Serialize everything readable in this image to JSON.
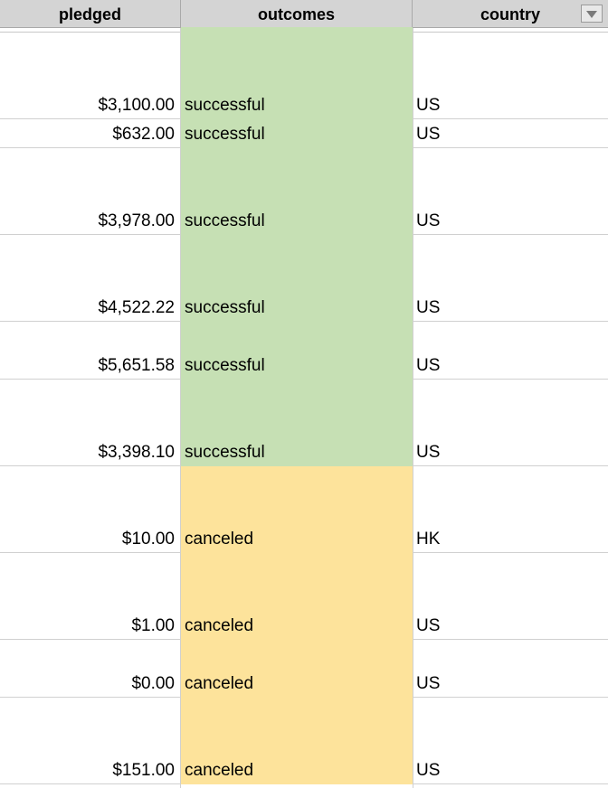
{
  "columns": {
    "pledged": "pledged",
    "outcomes": "outcomes",
    "country": "country"
  },
  "colors": {
    "successful": "#c6e0b4",
    "canceled": "#fde39b"
  },
  "rows": [
    {
      "pledged": "$3,100.00",
      "outcome": "successful",
      "country": "US"
    },
    {
      "pledged": "$632.00",
      "outcome": "successful",
      "country": "US"
    },
    {
      "pledged": "$3,978.00",
      "outcome": "successful",
      "country": "US"
    },
    {
      "pledged": "$4,522.22",
      "outcome": "successful",
      "country": "US"
    },
    {
      "pledged": "$5,651.58",
      "outcome": "successful",
      "country": "US"
    },
    {
      "pledged": "$3,398.10",
      "outcome": "successful",
      "country": "US"
    },
    {
      "pledged": "$10.00",
      "outcome": "canceled",
      "country": "HK"
    },
    {
      "pledged": "$1.00",
      "outcome": "canceled",
      "country": "US"
    },
    {
      "pledged": "$0.00",
      "outcome": "canceled",
      "country": "US"
    },
    {
      "pledged": "$151.00",
      "outcome": "canceled",
      "country": "US"
    }
  ]
}
